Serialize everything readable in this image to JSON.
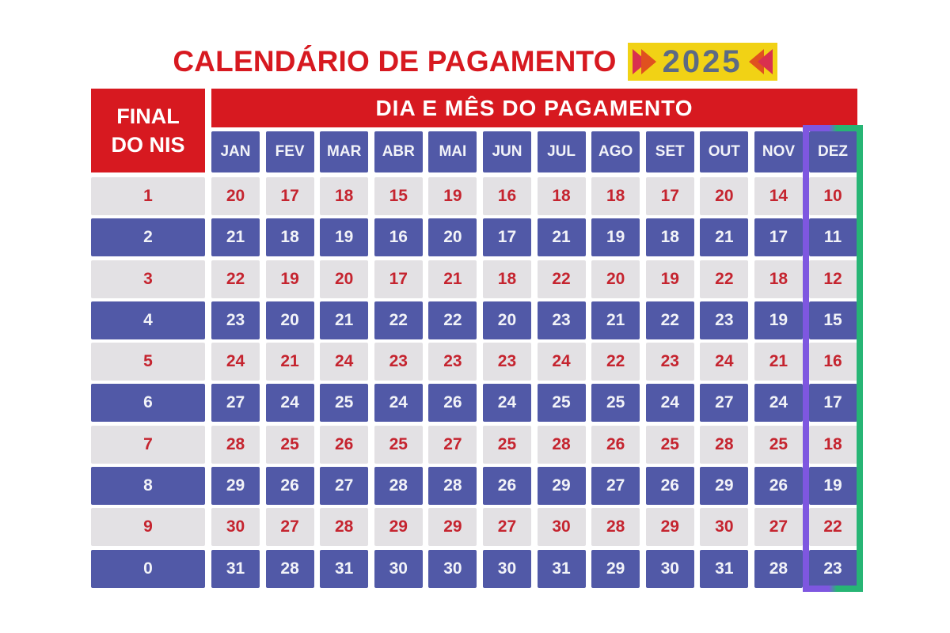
{
  "header": {
    "title": "CALENDÁRIO DE PAGAMENTO",
    "year": "2025"
  },
  "table": {
    "nis_header_line1": "FINAL",
    "nis_header_line2": "DO NIS",
    "column_group_label": "DIA E MÊS DO PAGAMENTO"
  },
  "colors": {
    "red": "#d71920",
    "blue": "#5159a7",
    "light_gray": "#e3e1e4",
    "red_text": "#c5242f",
    "yellow": "#f1d215",
    "year_text": "#5c6a84",
    "arrow_crimson": "#d9304f",
    "arrow_orange": "#e0511f",
    "highlight_purple": "#7e57e0",
    "highlight_green": "#27b575"
  },
  "chart_data": {
    "type": "table",
    "title": "CALENDÁRIO DE PAGAMENTO 2025",
    "row_header": "FINAL DO NIS",
    "column_group": "DIA E MÊS DO PAGAMENTO",
    "columns": [
      "JAN",
      "FEV",
      "MAR",
      "ABR",
      "MAI",
      "JUN",
      "JUL",
      "AGO",
      "SET",
      "OUT",
      "NOV",
      "DEZ"
    ],
    "rows": [
      {
        "nis": "1",
        "days": [
          20,
          17,
          18,
          15,
          19,
          16,
          18,
          18,
          17,
          20,
          14,
          10
        ]
      },
      {
        "nis": "2",
        "days": [
          21,
          18,
          19,
          16,
          20,
          17,
          21,
          19,
          18,
          21,
          17,
          11
        ]
      },
      {
        "nis": "3",
        "days": [
          22,
          19,
          20,
          17,
          21,
          18,
          22,
          20,
          19,
          22,
          18,
          12
        ]
      },
      {
        "nis": "4",
        "days": [
          23,
          20,
          21,
          22,
          22,
          20,
          23,
          21,
          22,
          23,
          19,
          15
        ]
      },
      {
        "nis": "5",
        "days": [
          24,
          21,
          24,
          23,
          23,
          23,
          24,
          22,
          23,
          24,
          21,
          16
        ]
      },
      {
        "nis": "6",
        "days": [
          27,
          24,
          25,
          24,
          26,
          24,
          25,
          25,
          24,
          27,
          24,
          17
        ]
      },
      {
        "nis": "7",
        "days": [
          28,
          25,
          26,
          25,
          27,
          25,
          28,
          26,
          25,
          28,
          25,
          18
        ]
      },
      {
        "nis": "8",
        "days": [
          29,
          26,
          27,
          28,
          28,
          26,
          29,
          27,
          26,
          29,
          26,
          19
        ]
      },
      {
        "nis": "9",
        "days": [
          30,
          27,
          28,
          29,
          29,
          27,
          30,
          28,
          29,
          30,
          27,
          22
        ]
      },
      {
        "nis": "0",
        "days": [
          31,
          28,
          31,
          30,
          30,
          30,
          31,
          29,
          30,
          31,
          28,
          23
        ]
      }
    ],
    "highlighted_column": "DEZ"
  }
}
